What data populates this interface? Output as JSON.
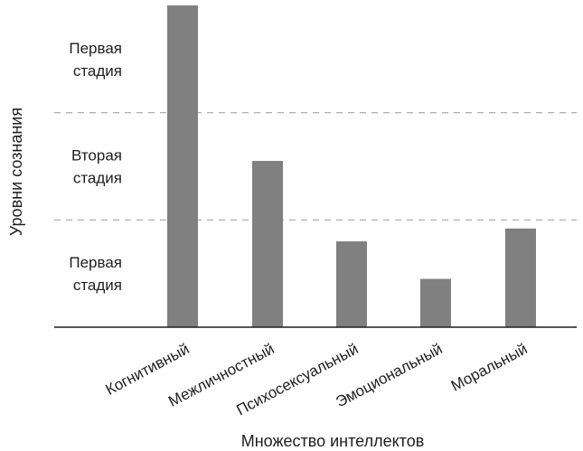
{
  "chart_data": {
    "type": "bar",
    "title": "",
    "xlabel": "Множество интеллектов",
    "ylabel": "Уровни сознания",
    "categories": [
      "Когнитивный",
      "Межличностный",
      "Психосексуальный",
      "Эмоциональный",
      "Моральный"
    ],
    "values": [
      3.0,
      1.55,
      0.8,
      0.45,
      0.92
    ],
    "ylim": [
      0,
      3
    ],
    "grid": false,
    "legend": "none",
    "bar_color": "#808080",
    "level_boundaries": [
      1,
      2
    ],
    "level_labels": [
      {
        "lines": [
          "Первая",
          "стадия"
        ]
      },
      {
        "lines": [
          "Вторая",
          "стадия"
        ]
      },
      {
        "lines": [
          "Первая",
          "стадия"
        ]
      }
    ]
  }
}
